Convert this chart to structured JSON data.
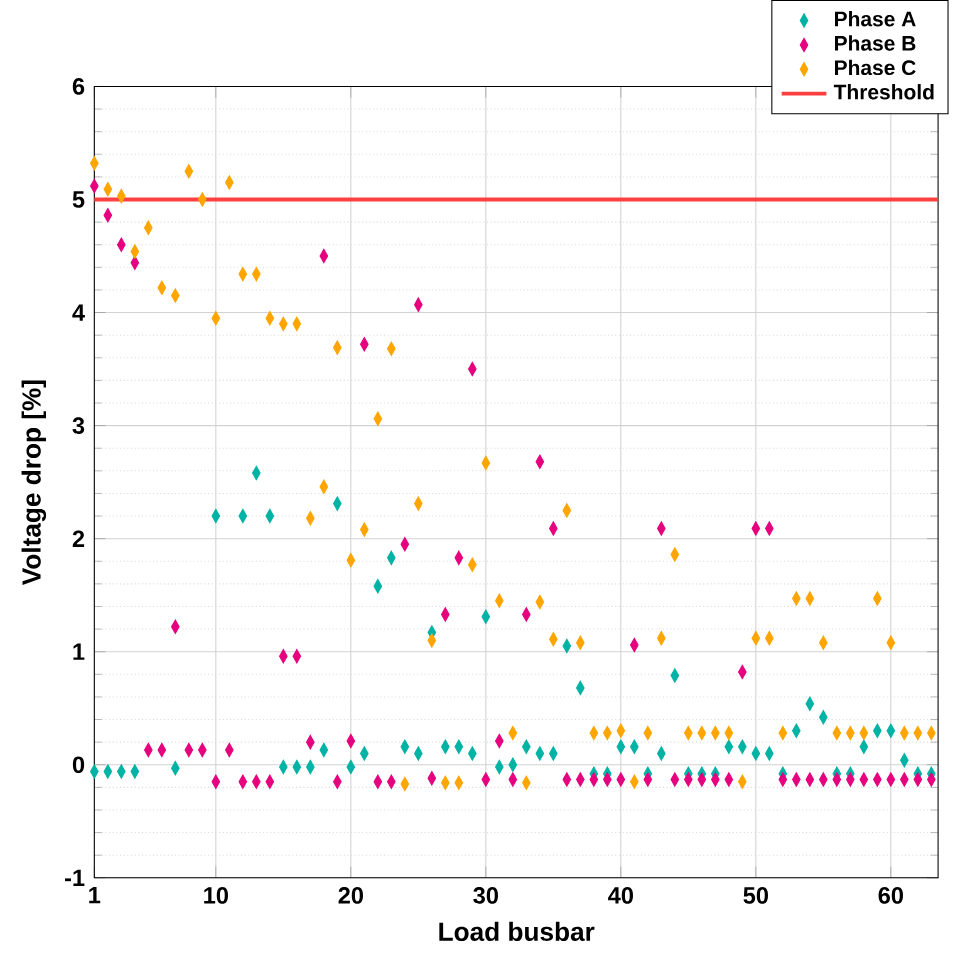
{
  "chart_data": {
    "type": "scatter",
    "xlabel": "Load busbar",
    "ylabel": "Voltage drop [%]",
    "x": [
      1,
      2,
      3,
      4,
      5,
      6,
      7,
      8,
      9,
      10,
      11,
      12,
      13,
      14,
      15,
      16,
      17,
      18,
      19,
      20,
      21,
      22,
      23,
      24,
      25,
      26,
      27,
      28,
      29,
      30,
      31,
      32,
      33,
      34,
      35,
      36,
      37,
      38,
      39,
      40,
      41,
      42,
      43,
      44,
      45,
      46,
      47,
      48,
      49,
      50,
      51,
      52,
      53,
      54,
      55,
      56,
      57,
      58,
      59,
      60,
      61,
      62,
      63
    ],
    "series": [
      {
        "name": "Phase A",
        "color": "#00b3a4",
        "values": [
          -0.06,
          -0.06,
          -0.06,
          -0.06,
          null,
          null,
          -0.03,
          null,
          null,
          2.2,
          null,
          2.2,
          2.58,
          2.2,
          -0.02,
          -0.02,
          -0.02,
          0.13,
          2.31,
          -0.02,
          0.1,
          1.58,
          1.83,
          0.16,
          0.1,
          1.17,
          0.16,
          0.16,
          0.1,
          1.31,
          -0.02,
          0.0,
          0.16,
          0.1,
          0.1,
          1.05,
          0.68,
          -0.08,
          -0.08,
          0.16,
          0.16,
          -0.08,
          0.1,
          0.79,
          -0.08,
          -0.08,
          -0.08,
          0.16,
          0.16,
          0.1,
          0.1,
          -0.08,
          0.3,
          0.54,
          0.42,
          -0.08,
          -0.08,
          0.16,
          0.3,
          0.3,
          0.04,
          -0.08,
          -0.08
        ]
      },
      {
        "name": "Phase B",
        "color": "#e6007e",
        "values": [
          5.12,
          4.86,
          4.6,
          4.44,
          0.13,
          0.13,
          1.22,
          0.13,
          0.13,
          -0.15,
          0.13,
          -0.15,
          -0.15,
          -0.15,
          0.96,
          0.96,
          0.2,
          4.5,
          -0.15,
          0.21,
          3.72,
          -0.15,
          -0.15,
          1.95,
          4.07,
          -0.12,
          1.33,
          1.83,
          3.5,
          -0.13,
          0.21,
          -0.13,
          1.33,
          2.68,
          2.09,
          -0.13,
          -0.13,
          -0.13,
          -0.13,
          -0.13,
          1.06,
          -0.13,
          2.09,
          -0.13,
          -0.13,
          -0.13,
          -0.13,
          -0.13,
          0.82,
          2.09,
          2.09,
          -0.13,
          -0.13,
          -0.13,
          -0.13,
          -0.13,
          -0.13,
          -0.13,
          -0.13,
          -0.13,
          -0.13,
          -0.13,
          -0.13
        ]
      },
      {
        "name": "Phase C",
        "color": "#ffa500",
        "values": [
          5.32,
          5.09,
          5.03,
          4.54,
          4.75,
          4.22,
          4.15,
          5.25,
          5.0,
          3.95,
          5.15,
          4.34,
          4.34,
          3.95,
          3.9,
          3.9,
          2.18,
          2.46,
          3.69,
          1.81,
          2.08,
          3.06,
          3.68,
          -0.17,
          2.31,
          1.1,
          -0.16,
          -0.16,
          1.77,
          2.67,
          1.45,
          0.28,
          -0.16,
          1.44,
          1.11,
          2.25,
          1.08,
          0.28,
          0.28,
          0.3,
          -0.15,
          0.28,
          1.12,
          1.86,
          0.28,
          0.28,
          0.28,
          0.28,
          -0.15,
          1.12,
          1.12,
          0.28,
          1.47,
          1.47,
          1.08,
          0.28,
          0.28,
          0.28,
          1.47,
          1.08,
          0.28,
          0.28,
          0.28
        ]
      }
    ],
    "ref_lines": [
      {
        "axis": "y",
        "value": 5,
        "label": "Threshold",
        "color": "#ff4040"
      }
    ],
    "xlim": [
      1,
      63.5
    ],
    "xticks": [
      1,
      10,
      20,
      30,
      40,
      50,
      60
    ],
    "ylim": [
      -1,
      6
    ],
    "yticks": [
      -1,
      0,
      1,
      2,
      3,
      4,
      5,
      6
    ],
    "grid": true,
    "legend": "top right",
    "marker": "diamond"
  }
}
